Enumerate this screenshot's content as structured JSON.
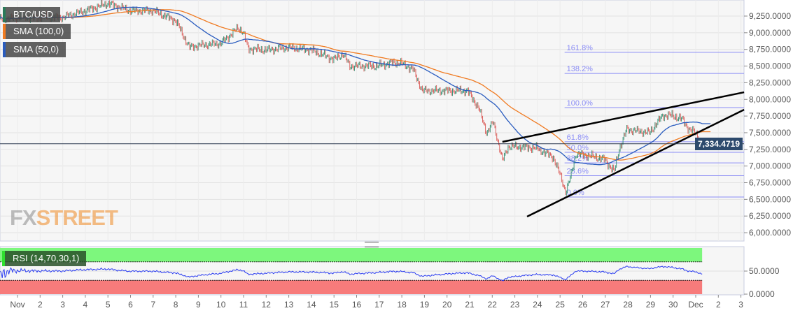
{
  "legend": {
    "symbol": "BTC/USD",
    "sma1": "SMA (100,0)",
    "sma2": "SMA (50,0)",
    "rsi": "RSI (14,70,30,1)"
  },
  "logo": {
    "part1": "FX",
    "part2": "STREET"
  },
  "colors": {
    "up": "#2e8b6e",
    "down": "#d9534f",
    "sma100": "#f07b22",
    "sma50": "#2a5cbf",
    "fib": "#8a8cf5",
    "rsi": "#2a3cf0",
    "overbought": "#7df77d",
    "oversold": "#f77b7b",
    "price_tag": "#2d4a6d"
  },
  "chart_data": {
    "type": "candlestick",
    "title": "BTC/USD",
    "x_unit": "days since Nov 1",
    "xlim": [
      -0.77,
      32.14
    ],
    "ylim": [
      5950,
      9400
    ],
    "x_ticks": [
      {
        "d": 0,
        "label": "Nov"
      },
      {
        "d": 1,
        "label": "2"
      },
      {
        "d": 2,
        "label": "3"
      },
      {
        "d": 3,
        "label": "4"
      },
      {
        "d": 4,
        "label": "5"
      },
      {
        "d": 5,
        "label": "6"
      },
      {
        "d": 6,
        "label": "7"
      },
      {
        "d": 7,
        "label": "8"
      },
      {
        "d": 8,
        "label": "9"
      },
      {
        "d": 9,
        "label": "10"
      },
      {
        "d": 10,
        "label": "11"
      },
      {
        "d": 11,
        "label": "12"
      },
      {
        "d": 12,
        "label": "13"
      },
      {
        "d": 13,
        "label": "14"
      },
      {
        "d": 14,
        "label": "15"
      },
      {
        "d": 15,
        "label": "16"
      },
      {
        "d": 16,
        "label": "17"
      },
      {
        "d": 17,
        "label": "18"
      },
      {
        "d": 18,
        "label": "19"
      },
      {
        "d": 19,
        "label": "20"
      },
      {
        "d": 20,
        "label": "21"
      },
      {
        "d": 21,
        "label": "22"
      },
      {
        "d": 22,
        "label": "23"
      },
      {
        "d": 23,
        "label": "24"
      },
      {
        "d": 24,
        "label": "25"
      },
      {
        "d": 25,
        "label": "26"
      },
      {
        "d": 26,
        "label": "27"
      },
      {
        "d": 27,
        "label": "28"
      },
      {
        "d": 28,
        "label": "29"
      },
      {
        "d": 29,
        "label": "30"
      },
      {
        "d": 30,
        "label": "Dec"
      },
      {
        "d": 31,
        "label": "2"
      },
      {
        "d": 32,
        "label": "3"
      }
    ],
    "y_ticks": [
      {
        "v": 9250,
        "label": "9,250.0000"
      },
      {
        "v": 9000,
        "label": "9,000.0000"
      },
      {
        "v": 8750,
        "label": "8,750.0000"
      },
      {
        "v": 8500,
        "label": "8,500.0000"
      },
      {
        "v": 8250,
        "label": "8,250.0000"
      },
      {
        "v": 8000,
        "label": "8,000.0000"
      },
      {
        "v": 7750,
        "label": "7,750.0000"
      },
      {
        "v": 7500,
        "label": "7,500.0000"
      },
      {
        "v": 7250,
        "label": "7,250.0000"
      },
      {
        "v": 7000,
        "label": "7,000.0000"
      },
      {
        "v": 6750,
        "label": "6,750.0000"
      },
      {
        "v": 6500,
        "label": "6,500.0000"
      },
      {
        "v": 6250,
        "label": "6,250.0000"
      },
      {
        "v": 6000,
        "label": "6,000.0000"
      }
    ],
    "price_path": [
      [
        -0.8,
        9200
      ],
      [
        0,
        9230
      ],
      [
        1,
        9230
      ],
      [
        2,
        9230
      ],
      [
        3,
        9330
      ],
      [
        4,
        9440
      ],
      [
        5,
        9330
      ],
      [
        6,
        9330
      ],
      [
        7,
        9180
      ],
      [
        7.6,
        8780
      ],
      [
        8,
        8810
      ],
      [
        9,
        8840
      ],
      [
        9.75,
        9070
      ],
      [
        9.97,
        9020
      ],
      [
        10.2,
        8760
      ],
      [
        11,
        8740
      ],
      [
        12,
        8780
      ],
      [
        13,
        8740
      ],
      [
        14,
        8600
      ],
      [
        14.4,
        8680
      ],
      [
        14.7,
        8500
      ],
      [
        15.9,
        8500
      ],
      [
        16.55,
        8550
      ],
      [
        16.9,
        8550
      ],
      [
        17.5,
        8450
      ],
      [
        17.9,
        8130
      ],
      [
        18.95,
        8130
      ],
      [
        19.9,
        8130
      ],
      [
        20.4,
        7870
      ],
      [
        20.75,
        7500
      ],
      [
        21.05,
        7660
      ],
      [
        21.45,
        7080
      ],
      [
        21.7,
        7290
      ],
      [
        22.1,
        7290
      ],
      [
        22.95,
        7270
      ],
      [
        23.7,
        7130
      ],
      [
        24,
        6870
      ],
      [
        24.25,
        6610
      ],
      [
        24.45,
        6820
      ],
      [
        24.7,
        7180
      ],
      [
        25.25,
        7160
      ],
      [
        25.95,
        7100
      ],
      [
        26.4,
        6920
      ],
      [
        26.6,
        7240
      ],
      [
        26.95,
        7550
      ],
      [
        27.95,
        7500
      ],
      [
        28.55,
        7760
      ],
      [
        28.95,
        7760
      ],
      [
        29.4,
        7700
      ],
      [
        29.7,
        7550
      ],
      [
        30,
        7500
      ],
      [
        30.3,
        7310
      ]
    ],
    "current_price": {
      "value": 7334.4719,
      "label": "7,334.4719"
    },
    "sma_periods_hours": [
      100,
      50
    ],
    "fibonacci": {
      "from_d": 24.2,
      "to_d": 32.14,
      "levels": [
        {
          "v": 6535,
          "label": "0.0%"
        },
        {
          "v": 6855,
          "label": "23.6%"
        },
        {
          "v": 7048,
          "label": "38.2%"
        },
        {
          "v": 7206,
          "label": "50.0%"
        },
        {
          "v": 7365,
          "label": "61.8%"
        },
        {
          "v": 7877,
          "label": "100.0%"
        },
        {
          "v": 8389,
          "label": "138.2%"
        },
        {
          "v": 8706,
          "label": "161.8%"
        }
      ]
    },
    "trendlines": [
      {
        "name": "upper",
        "p1": [
          21.45,
          7363
        ],
        "p2": [
          32.14,
          8107
        ]
      },
      {
        "name": "lower",
        "p1": [
          22.54,
          6242
        ],
        "p2": [
          32.14,
          7845
        ]
      }
    ],
    "rsi": {
      "period": 14,
      "overbought": 70,
      "oversold": 30,
      "ylim": [
        0,
        100
      ],
      "y_ticks": [
        {
          "v": 50,
          "label": "50.0000"
        },
        {
          "v": 0,
          "label": "0.0000"
        }
      ]
    }
  }
}
